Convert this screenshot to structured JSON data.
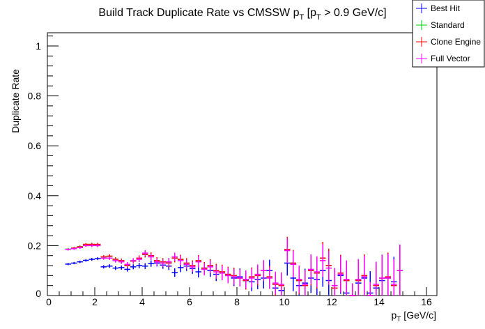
{
  "chart_data": {
    "type": "scatter",
    "title": "Build Track Duplicate Rate vs CMSSW p_T [p_T > 0.9 GeV/c]",
    "title_main": "Build Track Duplicate Rate vs CMSSW p",
    "title_sub1": "T",
    "title_mid": " [p",
    "title_sub2": "T",
    "title_end": " > 0.9 GeV/c]",
    "xlabel_main": "p",
    "xlabel_sub": "T",
    "xlabel_unit": " [GeV/c]",
    "ylabel": "Duplicate Rate",
    "xlim": [
      0,
      16.44
    ],
    "ylim": [
      0,
      1.053
    ],
    "xticks": [
      "0",
      "2",
      "4",
      "6",
      "8",
      "10",
      "12",
      "14",
      "16"
    ],
    "yticks": [
      "0",
      "0.2",
      "0.4",
      "0.6",
      "0.8",
      "1"
    ],
    "grid": false,
    "legend_placement": "top-right",
    "x": [
      0.875,
      1.125,
      1.375,
      1.625,
      1.875,
      2.125,
      2.375,
      2.625,
      2.875,
      3.125,
      3.375,
      3.625,
      3.875,
      4.125,
      4.375,
      4.625,
      4.875,
      5.125,
      5.375,
      5.625,
      5.875,
      6.125,
      6.375,
      6.625,
      6.875,
      7.125,
      7.375,
      7.625,
      7.875,
      8.125,
      8.375,
      8.625,
      8.875,
      9.125,
      9.375,
      9.625,
      9.875,
      10.125,
      10.375,
      10.625,
      10.875,
      11.125,
      11.375,
      11.625,
      11.875,
      12.125,
      12.375,
      12.625,
      12.875,
      13.125,
      13.375,
      13.625,
      13.875,
      14.125,
      14.375,
      14.625,
      14.875
    ],
    "bin_width": 0.25,
    "series": [
      {
        "name": "Best Hit",
        "color": "#0000ff",
        "values": [
          0.126,
          0.13,
          0.135,
          0.141,
          0.145,
          0.148,
          0.115,
          0.118,
          0.11,
          0.112,
          0.105,
          0.115,
          0.12,
          0.118,
          0.128,
          0.13,
          0.122,
          0.118,
          0.092,
          0.112,
          0.118,
          0.108,
          0.095,
          0.11,
          0.1,
          0.085,
          0.09,
          0.08,
          0.07,
          0.075,
          0.06,
          0.055,
          0.065,
          0.07,
          0.1,
          0.03,
          0.02,
          0.13,
          0.07,
          0.04,
          0.05,
          0.07,
          0.065,
          0.1,
          0.06,
          0.04,
          0.08,
          0.01,
          0.0,
          0.05,
          0.07,
          0.01,
          0.03,
          0.06,
          0.07,
          0.055,
          0.1
        ]
      },
      {
        "name": "Standard",
        "color": "#00cc00",
        "values": [
          0.186,
          0.19,
          0.196,
          0.205,
          0.205,
          0.204,
          0.155,
          0.157,
          0.146,
          0.14,
          0.121,
          0.138,
          0.15,
          0.164,
          0.16,
          0.14,
          0.135,
          0.131,
          0.15,
          0.145,
          0.13,
          0.12,
          0.139,
          0.11,
          0.12,
          0.1,
          0.095,
          0.085,
          0.08,
          0.07,
          0.06,
          0.075,
          0.08,
          0.1,
          0.075,
          0.045,
          0.04,
          0.185,
          0.13,
          0.06,
          0.04,
          0.1,
          0.09,
          0.15,
          0.12,
          0.03,
          0.09,
          0.06,
          0.0,
          0.06,
          0.08,
          0.0,
          0.04,
          0.07,
          0.075,
          0.04,
          0.1
        ]
      },
      {
        "name": "Clone Engine",
        "color": "#ff0000",
        "values": [
          0.185,
          0.19,
          0.195,
          0.205,
          0.205,
          0.205,
          0.155,
          0.158,
          0.145,
          0.14,
          0.12,
          0.138,
          0.15,
          0.165,
          0.16,
          0.14,
          0.135,
          0.13,
          0.15,
          0.145,
          0.13,
          0.12,
          0.14,
          0.11,
          0.12,
          0.1,
          0.095,
          0.085,
          0.08,
          0.07,
          0.06,
          0.075,
          0.08,
          0.1,
          0.075,
          0.045,
          0.04,
          0.185,
          0.13,
          0.06,
          0.04,
          0.1,
          0.09,
          0.15,
          0.12,
          0.03,
          0.09,
          0.06,
          0.0,
          0.06,
          0.08,
          0.0,
          0.04,
          0.07,
          0.075,
          0.04,
          0.1
        ]
      },
      {
        "name": "Full Vector",
        "color": "#ff00ff",
        "values": [
          0.185,
          0.188,
          0.192,
          0.2,
          0.2,
          0.2,
          0.15,
          0.15,
          0.14,
          0.135,
          0.125,
          0.14,
          0.145,
          0.17,
          0.155,
          0.135,
          0.13,
          0.135,
          0.155,
          0.14,
          0.125,
          0.115,
          0.135,
          0.105,
          0.115,
          0.095,
          0.09,
          0.08,
          0.075,
          0.07,
          0.065,
          0.07,
          0.085,
          0.1,
          0.07,
          0.05,
          0.045,
          0.18,
          0.125,
          0.065,
          0.045,
          0.105,
          0.095,
          0.14,
          0.11,
          0.04,
          0.085,
          0.065,
          0.0,
          0.065,
          0.075,
          0.0,
          0.045,
          0.07,
          0.07,
          0.045,
          0.1
        ]
      }
    ]
  }
}
